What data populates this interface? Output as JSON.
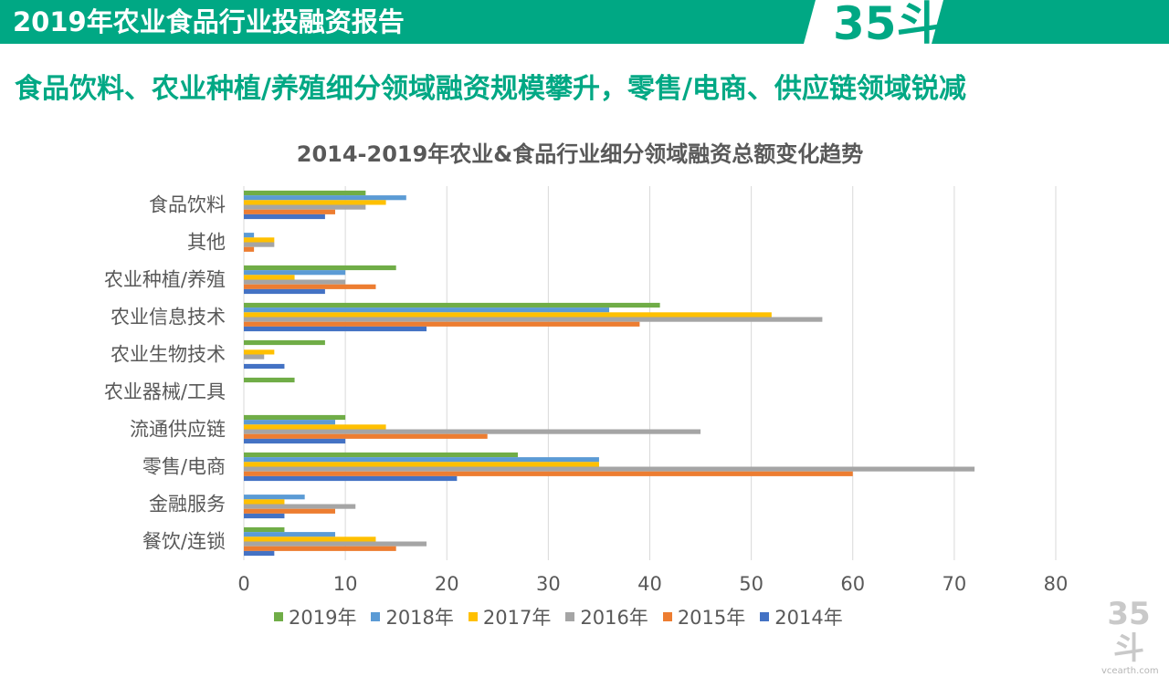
{
  "header": {
    "title": "2019年农业食品行业投融资报告",
    "logo": "35斗",
    "bar_color": "#00a884"
  },
  "subtitle": "食品饮料、农业种植/养殖细分领域融资规模攀升，零售/电商、供应链领域锐减",
  "watermark": {
    "logo": "35斗",
    "url": "vcearth.com"
  },
  "chart_data": {
    "type": "bar",
    "orientation": "horizontal",
    "title": "2014-2019年农业&食品行业细分领域融资总额变化趋势",
    "categories": [
      "食品饮料",
      "其他",
      "农业种植/养殖",
      "农业信息技术",
      "农业生物技术",
      "农业器械/工具",
      "流通供应链",
      "零售/电商",
      "金融服务",
      "餐饮/连锁"
    ],
    "series": [
      {
        "name": "2019年",
        "color": "#70ad47",
        "values": [
          12,
          0,
          15,
          41,
          8,
          5,
          10,
          27,
          0,
          4
        ]
      },
      {
        "name": "2018年",
        "color": "#5b9bd5",
        "values": [
          16,
          1,
          10,
          36,
          0,
          0,
          9,
          35,
          6,
          9
        ]
      },
      {
        "name": "2017年",
        "color": "#ffc000",
        "values": [
          14,
          3,
          5,
          52,
          3,
          0,
          14,
          35,
          4,
          13
        ]
      },
      {
        "name": "2016年",
        "color": "#a5a5a5",
        "values": [
          12,
          3,
          10,
          57,
          2,
          0,
          45,
          72,
          11,
          18
        ]
      },
      {
        "name": "2015年",
        "color": "#ed7d31",
        "values": [
          9,
          1,
          13,
          39,
          0,
          0,
          24,
          60,
          9,
          15
        ]
      },
      {
        "name": "2014年",
        "color": "#4472c4",
        "values": [
          8,
          0,
          8,
          18,
          4,
          0,
          10,
          21,
          4,
          3
        ]
      }
    ],
    "xlim": [
      0,
      80
    ],
    "x_ticks": [
      "0",
      "10",
      "20",
      "30",
      "40",
      "50",
      "60",
      "70",
      "80"
    ],
    "grid": true,
    "legend_position": "bottom"
  }
}
